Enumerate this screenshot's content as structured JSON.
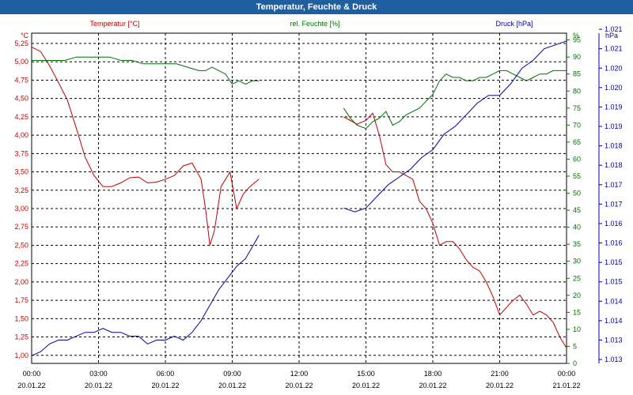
{
  "window": {
    "title": "Temperatur, Feuchte & Druck"
  },
  "chart_data": {
    "type": "line",
    "title": "Temperatur, Feuchte & Druck",
    "grid": true,
    "x_tick_labels": [
      {
        "time": "00:00",
        "date": "20.01.22"
      },
      {
        "time": "03:00",
        "date": "20.01.22"
      },
      {
        "time": "06:00",
        "date": "20.01.22"
      },
      {
        "time": "09:00",
        "date": "20.01.22"
      },
      {
        "time": "12:00",
        "date": "20.01.22"
      },
      {
        "time": "15:00",
        "date": "20.01.22"
      },
      {
        "time": "18:00",
        "date": "20.01.22"
      },
      {
        "time": "21:00",
        "date": "20.01.22"
      },
      {
        "time": "00:00",
        "date": "21.01.22"
      }
    ],
    "axes": {
      "temperature": {
        "label": "Temperatur [°C]",
        "unit": "°C",
        "color": "#c00000",
        "range": [
          0.89,
          5.39
        ],
        "ticks": [
          "1,00",
          "1,25",
          "1,50",
          "1,75",
          "2,00",
          "2,25",
          "2,50",
          "2,75",
          "3,00",
          "3,25",
          "3,50",
          "3,75",
          "4,00",
          "4,25",
          "4,50",
          "4,75",
          "5,00",
          "5,25"
        ]
      },
      "humidity": {
        "label": "rel. Feuchte [%]",
        "unit": "%",
        "color": "#007000",
        "range": [
          0,
          97
        ],
        "ticks": [
          "0",
          "5",
          "10",
          "15",
          "20",
          "25",
          "30",
          "35",
          "40",
          "45",
          "50",
          "55",
          "60",
          "65",
          "70",
          "75",
          "80",
          "85",
          "90",
          "95"
        ]
      },
      "pressure": {
        "label": "Druck [hPa]",
        "unit": "hPa",
        "color": "#0000a0",
        "range": [
          1012.9,
          1021.4
        ],
        "ticks": [
          "1.013",
          "1.013",
          "1.014",
          "1.014",
          "1.015",
          "1.015",
          "1.016",
          "1.016",
          "1.017",
          "1.017",
          "1.018",
          "1.018",
          "1.019",
          "1.019",
          "1.020",
          "1.020",
          "1.021",
          "1.021"
        ]
      }
    },
    "series": [
      {
        "name": "Temperatur [°C]",
        "axis": "temperature",
        "color": "#c00000",
        "segments": [
          [
            [
              0,
              5.2
            ],
            [
              0.4,
              5.14
            ],
            [
              0.8,
              4.95
            ],
            [
              1.2,
              4.72
            ],
            [
              1.6,
              4.48
            ],
            [
              2.0,
              4.1
            ],
            [
              2.4,
              3.7
            ],
            [
              2.8,
              3.45
            ],
            [
              3.2,
              3.3
            ],
            [
              3.6,
              3.3
            ],
            [
              4.0,
              3.35
            ],
            [
              4.4,
              3.42
            ],
            [
              4.8,
              3.43
            ],
            [
              5.2,
              3.35
            ],
            [
              5.6,
              3.36
            ],
            [
              6.0,
              3.4
            ],
            [
              6.4,
              3.45
            ],
            [
              6.8,
              3.58
            ],
            [
              7.2,
              3.62
            ],
            [
              7.6,
              3.4
            ],
            [
              7.8,
              3.0
            ],
            [
              8.0,
              2.5
            ],
            [
              8.2,
              2.7
            ],
            [
              8.5,
              3.3
            ],
            [
              8.9,
              3.5
            ],
            [
              9.2,
              3.0
            ],
            [
              9.5,
              3.2
            ],
            [
              9.8,
              3.3
            ],
            [
              10.2,
              3.4
            ]
          ],
          [
            [
              14.0,
              4.25
            ],
            [
              14.3,
              4.2
            ],
            [
              14.6,
              4.15
            ],
            [
              15.0,
              4.2
            ],
            [
              15.3,
              4.3
            ],
            [
              15.6,
              4.0
            ],
            [
              15.9,
              3.6
            ],
            [
              16.2,
              3.5
            ],
            [
              16.5,
              3.5
            ],
            [
              16.8,
              3.45
            ],
            [
              17.1,
              3.4
            ],
            [
              17.4,
              3.1
            ],
            [
              17.7,
              3.0
            ],
            [
              18.0,
              2.8
            ],
            [
              18.3,
              2.5
            ],
            [
              18.6,
              2.55
            ],
            [
              18.9,
              2.55
            ],
            [
              19.2,
              2.45
            ],
            [
              19.5,
              2.3
            ],
            [
              19.8,
              2.2
            ],
            [
              20.1,
              2.15
            ],
            [
              20.4,
              2.0
            ],
            [
              20.7,
              1.8
            ],
            [
              21.0,
              1.55
            ],
            [
              21.3,
              1.65
            ],
            [
              21.6,
              1.75
            ],
            [
              21.9,
              1.82
            ],
            [
              22.2,
              1.7
            ],
            [
              22.5,
              1.55
            ],
            [
              22.8,
              1.6
            ],
            [
              23.1,
              1.55
            ],
            [
              23.4,
              1.45
            ],
            [
              23.7,
              1.25
            ],
            [
              24.0,
              1.1
            ]
          ]
        ]
      },
      {
        "name": "rel. Feuchte [%]",
        "axis": "humidity",
        "color": "#007000",
        "segments": [
          [
            [
              0,
              89
            ],
            [
              0.5,
              89
            ],
            [
              1.0,
              89
            ],
            [
              1.5,
              89
            ],
            [
              2.0,
              90
            ],
            [
              2.5,
              90
            ],
            [
              3.0,
              90
            ],
            [
              3.5,
              90
            ],
            [
              4.0,
              89
            ],
            [
              4.5,
              89
            ],
            [
              5.0,
              88
            ],
            [
              5.5,
              88
            ],
            [
              6.0,
              88
            ],
            [
              6.5,
              88
            ],
            [
              7.0,
              87
            ],
            [
              7.5,
              86
            ],
            [
              7.8,
              86
            ],
            [
              8.1,
              87
            ],
            [
              8.4,
              86
            ],
            [
              8.7,
              85
            ],
            [
              9.0,
              82
            ],
            [
              9.3,
              83
            ],
            [
              9.6,
              82
            ],
            [
              9.9,
              83
            ],
            [
              10.2,
              83
            ]
          ],
          [
            [
              14.0,
              75
            ],
            [
              14.3,
              72
            ],
            [
              14.6,
              70
            ],
            [
              15.0,
              69
            ],
            [
              15.3,
              71
            ],
            [
              15.6,
              72
            ],
            [
              15.9,
              74
            ],
            [
              16.2,
              70
            ],
            [
              16.5,
              71
            ],
            [
              16.8,
              73
            ],
            [
              17.1,
              74
            ],
            [
              17.4,
              75
            ],
            [
              17.7,
              77
            ],
            [
              18.0,
              79
            ],
            [
              18.3,
              83
            ],
            [
              18.6,
              85
            ],
            [
              18.9,
              84
            ],
            [
              19.2,
              84
            ],
            [
              19.5,
              83
            ],
            [
              19.8,
              83
            ],
            [
              20.1,
              84
            ],
            [
              20.4,
              84
            ],
            [
              20.7,
              85
            ],
            [
              21.0,
              86
            ],
            [
              21.3,
              86
            ],
            [
              21.6,
              85
            ],
            [
              21.9,
              84
            ],
            [
              22.2,
              83
            ],
            [
              22.5,
              84
            ],
            [
              22.8,
              85
            ],
            [
              23.1,
              85
            ],
            [
              23.4,
              86
            ],
            [
              23.7,
              86
            ],
            [
              24.0,
              86
            ]
          ]
        ]
      },
      {
        "name": "Druck [hPa]",
        "axis": "pressure",
        "color": "#0000a0",
        "segments": [
          [
            [
              0,
              1013.1
            ],
            [
              0.4,
              1013.2
            ],
            [
              0.8,
              1013.4
            ],
            [
              1.2,
              1013.5
            ],
            [
              1.6,
              1013.5
            ],
            [
              2.0,
              1013.6
            ],
            [
              2.4,
              1013.7
            ],
            [
              2.8,
              1013.7
            ],
            [
              3.2,
              1013.8
            ],
            [
              3.6,
              1013.7
            ],
            [
              4.0,
              1013.7
            ],
            [
              4.4,
              1013.6
            ],
            [
              4.8,
              1013.6
            ],
            [
              5.2,
              1013.4
            ],
            [
              5.6,
              1013.5
            ],
            [
              6.0,
              1013.5
            ],
            [
              6.4,
              1013.6
            ],
            [
              6.8,
              1013.5
            ],
            [
              7.2,
              1013.7
            ],
            [
              7.6,
              1014.0
            ],
            [
              8.0,
              1014.4
            ],
            [
              8.4,
              1014.8
            ],
            [
              8.8,
              1015.1
            ],
            [
              9.2,
              1015.4
            ],
            [
              9.6,
              1015.6
            ],
            [
              10.0,
              1016.0
            ],
            [
              10.2,
              1016.2
            ]
          ],
          [
            [
              14.0,
              1016.9
            ],
            [
              14.5,
              1016.8
            ],
            [
              15.0,
              1016.9
            ],
            [
              15.5,
              1017.2
            ],
            [
              16.0,
              1017.5
            ],
            [
              16.5,
              1017.7
            ],
            [
              17.0,
              1017.9
            ],
            [
              17.5,
              1018.2
            ],
            [
              18.0,
              1018.4
            ],
            [
              18.5,
              1018.8
            ],
            [
              19.0,
              1019.0
            ],
            [
              19.5,
              1019.3
            ],
            [
              20.0,
              1019.6
            ],
            [
              20.5,
              1019.8
            ],
            [
              21.0,
              1019.8
            ],
            [
              21.5,
              1020.1
            ],
            [
              22.0,
              1020.5
            ],
            [
              22.5,
              1020.7
            ],
            [
              23.0,
              1021.0
            ],
            [
              23.5,
              1021.1
            ],
            [
              24.0,
              1021.2
            ]
          ]
        ]
      }
    ],
    "x_range_hours": [
      0,
      24
    ]
  }
}
